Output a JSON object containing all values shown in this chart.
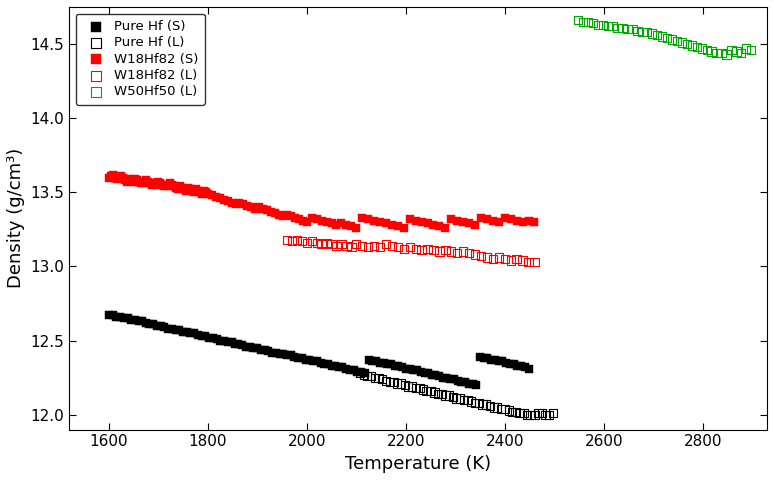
{
  "title": "",
  "xlabel": "Temperature (K)",
  "ylabel": "Density (g/cm³)",
  "xlim": [
    1520,
    2930
  ],
  "ylim": [
    11.9,
    14.75
  ],
  "xticks": [
    1600,
    1800,
    2000,
    2200,
    2400,
    2600,
    2800
  ],
  "yticks": [
    12.0,
    12.5,
    13.0,
    13.5,
    14.0,
    14.5
  ],
  "series": [
    {
      "label": "Pure Hf (S)",
      "color": "#000000",
      "marker": "s",
      "filled": true,
      "x": [
        1600,
        1608,
        1615,
        1622,
        1630,
        1638,
        1645,
        1652,
        1660,
        1668,
        1675,
        1682,
        1690,
        1698,
        1705,
        1712,
        1720,
        1728,
        1735,
        1742,
        1750,
        1758,
        1765,
        1772,
        1780,
        1788,
        1795,
        1802,
        1810,
        1818,
        1825,
        1832,
        1840,
        1848,
        1855,
        1862,
        1870,
        1878,
        1885,
        1892,
        1900,
        1908,
        1915,
        1922,
        1930,
        1938,
        1945,
        1952,
        1960,
        1968,
        1975,
        1982,
        1990,
        1998,
        2005,
        2012,
        2020,
        2028,
        2035,
        2042,
        2050,
        2058,
        2065,
        2072,
        2080,
        2088,
        2095,
        2102,
        2110,
        2118,
        2125,
        2132,
        2140,
        2148,
        2155,
        2162,
        2170,
        2178,
        2185,
        2192,
        2200,
        2208,
        2215,
        2222,
        2230,
        2238,
        2245,
        2252,
        2260,
        2268,
        2275,
        2282,
        2290,
        2298,
        2305,
        2312,
        2320,
        2328,
        2335,
        2342,
        2350,
        2358,
        2365,
        2372,
        2380,
        2388,
        2395,
        2402,
        2410,
        2418,
        2425,
        2432,
        2440,
        2448
      ],
      "y": [
        12.67,
        12.67,
        12.66,
        12.66,
        12.65,
        12.65,
        12.64,
        12.64,
        12.63,
        12.63,
        12.62,
        12.61,
        12.61,
        12.6,
        12.6,
        12.59,
        12.58,
        12.58,
        12.57,
        12.57,
        12.56,
        12.56,
        12.55,
        12.55,
        12.54,
        12.53,
        12.53,
        12.52,
        12.52,
        12.51,
        12.5,
        12.5,
        12.49,
        12.49,
        12.48,
        12.48,
        12.47,
        12.46,
        12.46,
        12.45,
        12.45,
        12.44,
        12.44,
        12.43,
        12.42,
        12.42,
        12.41,
        12.41,
        12.4,
        12.4,
        12.39,
        12.38,
        12.38,
        12.37,
        12.37,
        12.36,
        12.36,
        12.35,
        12.34,
        12.34,
        12.33,
        12.33,
        12.32,
        12.32,
        12.31,
        12.3,
        12.3,
        12.29,
        12.29,
        12.28,
        12.37,
        12.36,
        12.36,
        12.35,
        12.35,
        12.34,
        12.34,
        12.33,
        12.33,
        12.32,
        12.31,
        12.31,
        12.3,
        12.3,
        12.29,
        12.28,
        12.28,
        12.27,
        12.27,
        12.26,
        12.25,
        12.25,
        12.24,
        12.24,
        12.23,
        12.22,
        12.22,
        12.21,
        12.21,
        12.2,
        12.39,
        12.38,
        12.38,
        12.37,
        12.37,
        12.36,
        12.36,
        12.35,
        12.34,
        12.34,
        12.33,
        12.33,
        12.32,
        12.31
      ]
    },
    {
      "label": "Pure Hf (L)",
      "color": "#000000",
      "marker": "s",
      "filled": false,
      "x": [
        2108,
        2115,
        2122,
        2130,
        2138,
        2145,
        2152,
        2160,
        2168,
        2175,
        2182,
        2190,
        2198,
        2205,
        2212,
        2220,
        2228,
        2235,
        2242,
        2250,
        2258,
        2265,
        2272,
        2280,
        2288,
        2295,
        2302,
        2310,
        2318,
        2325,
        2332,
        2340,
        2348,
        2355,
        2362,
        2370,
        2378,
        2385,
        2392,
        2400,
        2408,
        2415,
        2422,
        2430,
        2438,
        2445,
        2452,
        2460,
        2468,
        2475,
        2482,
        2490,
        2498
      ],
      "y": [
        12.28,
        12.27,
        12.26,
        12.26,
        12.25,
        12.25,
        12.24,
        12.23,
        12.22,
        12.22,
        12.21,
        12.21,
        12.2,
        12.19,
        12.19,
        12.18,
        12.18,
        12.17,
        12.16,
        12.16,
        12.15,
        12.14,
        12.14,
        12.13,
        12.13,
        12.12,
        12.11,
        12.11,
        12.1,
        12.1,
        12.09,
        12.08,
        12.08,
        12.07,
        12.07,
        12.06,
        12.05,
        12.05,
        12.04,
        12.04,
        12.03,
        12.02,
        12.02,
        12.01,
        12.01,
        12.0,
        12.0,
        12.0,
        12.01,
        12.01,
        12.0,
        12.0,
        12.01
      ]
    },
    {
      "label": "W18Hf82 (S)",
      "color": "#ff0000",
      "marker": "s",
      "filled": true,
      "x": [
        1600,
        1604,
        1608,
        1612,
        1616,
        1620,
        1624,
        1628,
        1632,
        1636,
        1640,
        1644,
        1648,
        1652,
        1656,
        1660,
        1664,
        1668,
        1672,
        1676,
        1680,
        1684,
        1688,
        1692,
        1696,
        1700,
        1704,
        1708,
        1712,
        1716,
        1720,
        1724,
        1728,
        1732,
        1736,
        1740,
        1744,
        1748,
        1752,
        1756,
        1760,
        1764,
        1768,
        1772,
        1776,
        1780,
        1784,
        1788,
        1792,
        1796,
        1800,
        1808,
        1816,
        1824,
        1832,
        1840,
        1848,
        1856,
        1864,
        1872,
        1880,
        1888,
        1896,
        1904,
        1912,
        1920,
        1928,
        1936,
        1944,
        1952,
        1960,
        1968,
        1976,
        1984,
        1992,
        2000,
        2010,
        2020,
        2030,
        2040,
        2050,
        2060,
        2070,
        2080,
        2090,
        2100,
        2112,
        2124,
        2136,
        2148,
        2160,
        2172,
        2184,
        2196,
        2208,
        2220,
        2232,
        2244,
        2256,
        2268,
        2280,
        2292,
        2304,
        2316,
        2328,
        2340,
        2352,
        2364,
        2376,
        2388,
        2400,
        2412,
        2424,
        2436,
        2448,
        2460
      ],
      "y": [
        13.6,
        13.61,
        13.62,
        13.6,
        13.59,
        13.6,
        13.61,
        13.6,
        13.58,
        13.57,
        13.59,
        13.58,
        13.57,
        13.59,
        13.58,
        13.57,
        13.56,
        13.57,
        13.56,
        13.58,
        13.57,
        13.56,
        13.55,
        13.56,
        13.55,
        13.57,
        13.56,
        13.55,
        13.54,
        13.55,
        13.54,
        13.56,
        13.55,
        13.54,
        13.53,
        13.52,
        13.54,
        13.53,
        13.52,
        13.51,
        13.53,
        13.52,
        13.51,
        13.5,
        13.52,
        13.51,
        13.5,
        13.49,
        13.51,
        13.5,
        13.49,
        13.48,
        13.47,
        13.46,
        13.45,
        13.44,
        13.43,
        13.42,
        13.43,
        13.42,
        13.41,
        13.4,
        13.39,
        13.4,
        13.39,
        13.38,
        13.37,
        13.36,
        13.35,
        13.34,
        13.35,
        13.34,
        13.33,
        13.32,
        13.31,
        13.3,
        13.33,
        13.32,
        13.31,
        13.3,
        13.29,
        13.28,
        13.29,
        13.28,
        13.27,
        13.26,
        13.33,
        13.32,
        13.31,
        13.3,
        13.29,
        13.28,
        13.27,
        13.26,
        13.32,
        13.31,
        13.3,
        13.29,
        13.28,
        13.27,
        13.26,
        13.32,
        13.31,
        13.3,
        13.29,
        13.28,
        13.33,
        13.32,
        13.31,
        13.3,
        13.33,
        13.32,
        13.31,
        13.3,
        13.31,
        13.3
      ]
    },
    {
      "label": "W18Hf82 (L)",
      "color": "#ff0000",
      "marker": "s",
      "filled": false,
      "x": [
        1960,
        1970,
        1980,
        1990,
        2000,
        2010,
        2020,
        2030,
        2040,
        2050,
        2060,
        2070,
        2080,
        2090,
        2100,
        2112,
        2124,
        2136,
        2148,
        2160,
        2172,
        2184,
        2196,
        2208,
        2220,
        2232,
        2244,
        2256,
        2268,
        2280,
        2292,
        2304,
        2316,
        2328,
        2340,
        2352,
        2364,
        2376,
        2388,
        2400,
        2412,
        2424,
        2436,
        2448,
        2460
      ],
      "y": [
        13.18,
        13.17,
        13.18,
        13.17,
        13.16,
        13.17,
        13.16,
        13.15,
        13.16,
        13.15,
        13.14,
        13.15,
        13.14,
        13.13,
        13.15,
        13.14,
        13.13,
        13.14,
        13.13,
        13.15,
        13.14,
        13.13,
        13.12,
        13.13,
        13.12,
        13.11,
        13.12,
        13.11,
        13.1,
        13.11,
        13.1,
        13.09,
        13.1,
        13.09,
        13.08,
        13.07,
        13.06,
        13.05,
        13.06,
        13.05,
        13.04,
        13.05,
        13.04,
        13.03,
        13.03
      ]
    },
    {
      "label": "W50Hf50 (L)",
      "color": "#00aa00",
      "marker": "s",
      "filled": false,
      "x": [
        2548,
        2558,
        2568,
        2578,
        2588,
        2598,
        2608,
        2618,
        2628,
        2638,
        2648,
        2658,
        2668,
        2678,
        2688,
        2698,
        2708,
        2718,
        2728,
        2738,
        2748,
        2758,
        2768,
        2778,
        2788,
        2798,
        2808,
        2818,
        2828,
        2838,
        2848,
        2858,
        2868,
        2878,
        2888,
        2898
      ],
      "y": [
        14.66,
        14.65,
        14.65,
        14.64,
        14.63,
        14.63,
        14.62,
        14.62,
        14.61,
        14.61,
        14.6,
        14.6,
        14.59,
        14.58,
        14.58,
        14.57,
        14.56,
        14.55,
        14.54,
        14.53,
        14.52,
        14.51,
        14.5,
        14.49,
        14.48,
        14.47,
        14.46,
        14.45,
        14.44,
        14.44,
        14.43,
        14.46,
        14.45,
        14.44,
        14.47,
        14.46
      ]
    }
  ]
}
